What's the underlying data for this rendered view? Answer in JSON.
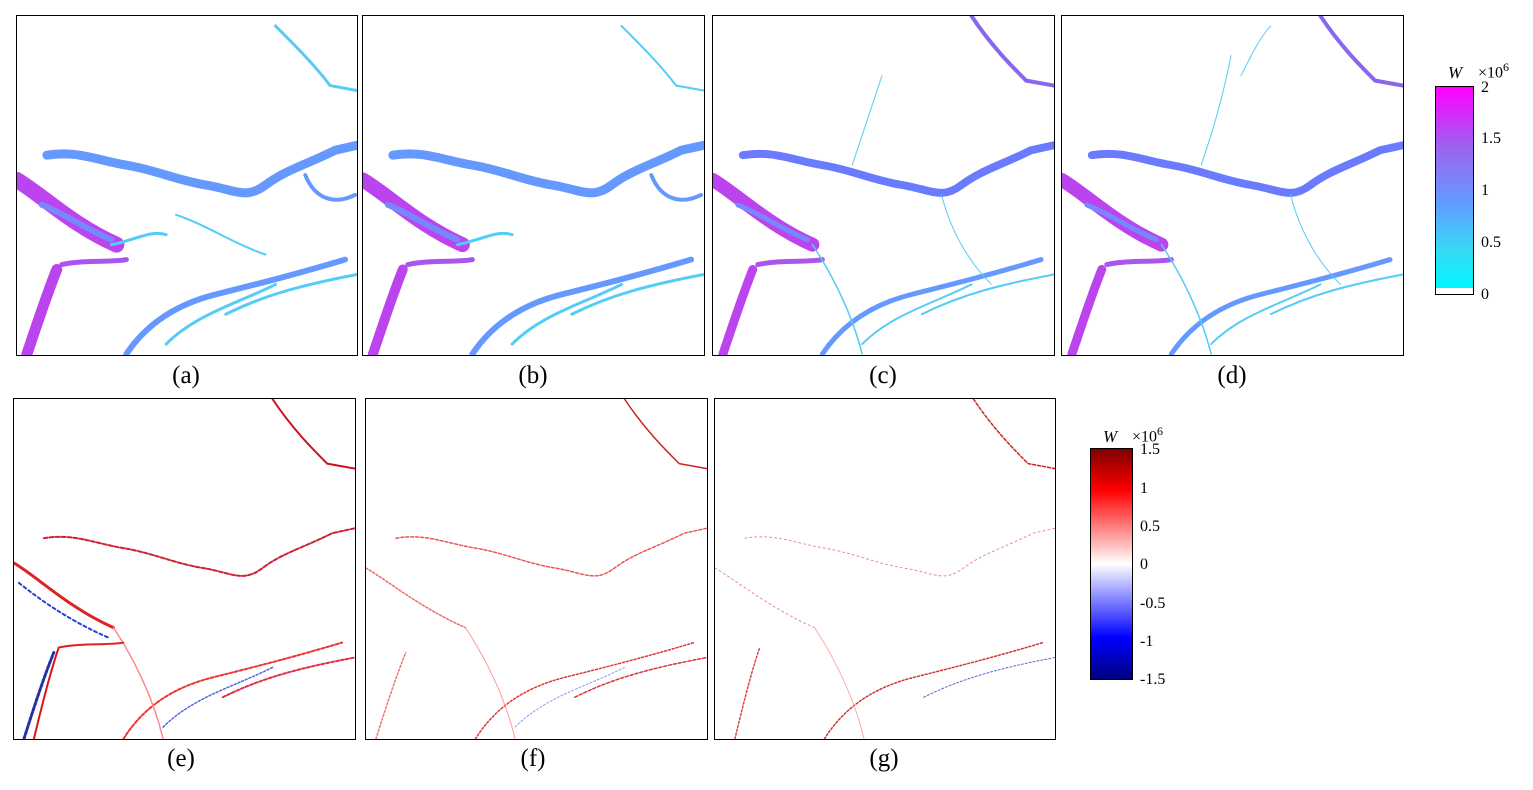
{
  "panels": [
    {
      "id": "a",
      "label": "(a)"
    },
    {
      "id": "b",
      "label": "(b)"
    },
    {
      "id": "c",
      "label": "(c)"
    },
    {
      "id": "d",
      "label": "(d)"
    },
    {
      "id": "e",
      "label": "(e)"
    },
    {
      "id": "f",
      "label": "(f)"
    },
    {
      "id": "g",
      "label": "(g)"
    }
  ],
  "colorbar_top": {
    "symbol": "W",
    "scale_base": "×10",
    "scale_exp": "6",
    "ticks": [
      "2",
      "1.5",
      "1",
      "0.5",
      "0"
    ],
    "colors": [
      "#ff00ff",
      "#9966ee",
      "#6699ff",
      "#33ddf5",
      "#00f5ff"
    ]
  },
  "colorbar_bottom": {
    "symbol": "W",
    "scale_base": "×10",
    "scale_exp": "6",
    "ticks": [
      "1.5",
      "1",
      "0.5",
      "0",
      "-0.5",
      "-1",
      "-1.5"
    ],
    "colors": [
      "#800000",
      "#ff0000",
      "#ffffff",
      "#0000ff",
      "#000080"
    ]
  }
}
